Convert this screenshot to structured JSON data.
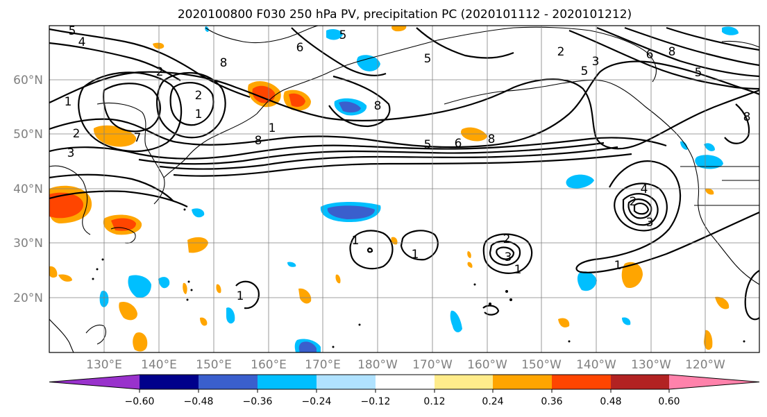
{
  "title": "2020100800 F030 250 hPa PV, precipitation PC (2020101112 - 2020101212)",
  "lat_labels": [
    "60°N",
    "50°N",
    "40°N",
    "30°N",
    "20°N"
  ],
  "lon_labels": [
    "130°E",
    "140°E",
    "150°E",
    "160°E",
    "170°E",
    "180°W",
    "170°W",
    "160°W",
    "150°W",
    "140°W",
    "130°W",
    "120°W"
  ],
  "colorbar": {
    "colors": [
      "#9932cc",
      "#00008b",
      "#3a5fcd",
      "#00bfff",
      "#b0e2ff",
      "#ffffff",
      "#ffec8b",
      "#ffa500",
      "#ff4500",
      "#b22222",
      "#ff82ab"
    ],
    "tick_labels": [
      "−0.60",
      "−0.48",
      "−0.36",
      "−0.24",
      "−0.12",
      "0.12",
      "0.24",
      "0.36",
      "0.48",
      "0.60"
    ]
  },
  "contour_labels": [
    "5",
    "4",
    "2",
    "1",
    "2",
    "3",
    "8",
    "2",
    "1",
    "8",
    "5",
    "6",
    "5",
    "1",
    "8",
    "8",
    "5",
    "2",
    "5",
    "3",
    "8",
    "5",
    "6",
    "4",
    "2",
    "3",
    "1",
    "1",
    "2",
    "3",
    "1",
    "1",
    "1",
    "7",
    "6",
    "8"
  ]
}
